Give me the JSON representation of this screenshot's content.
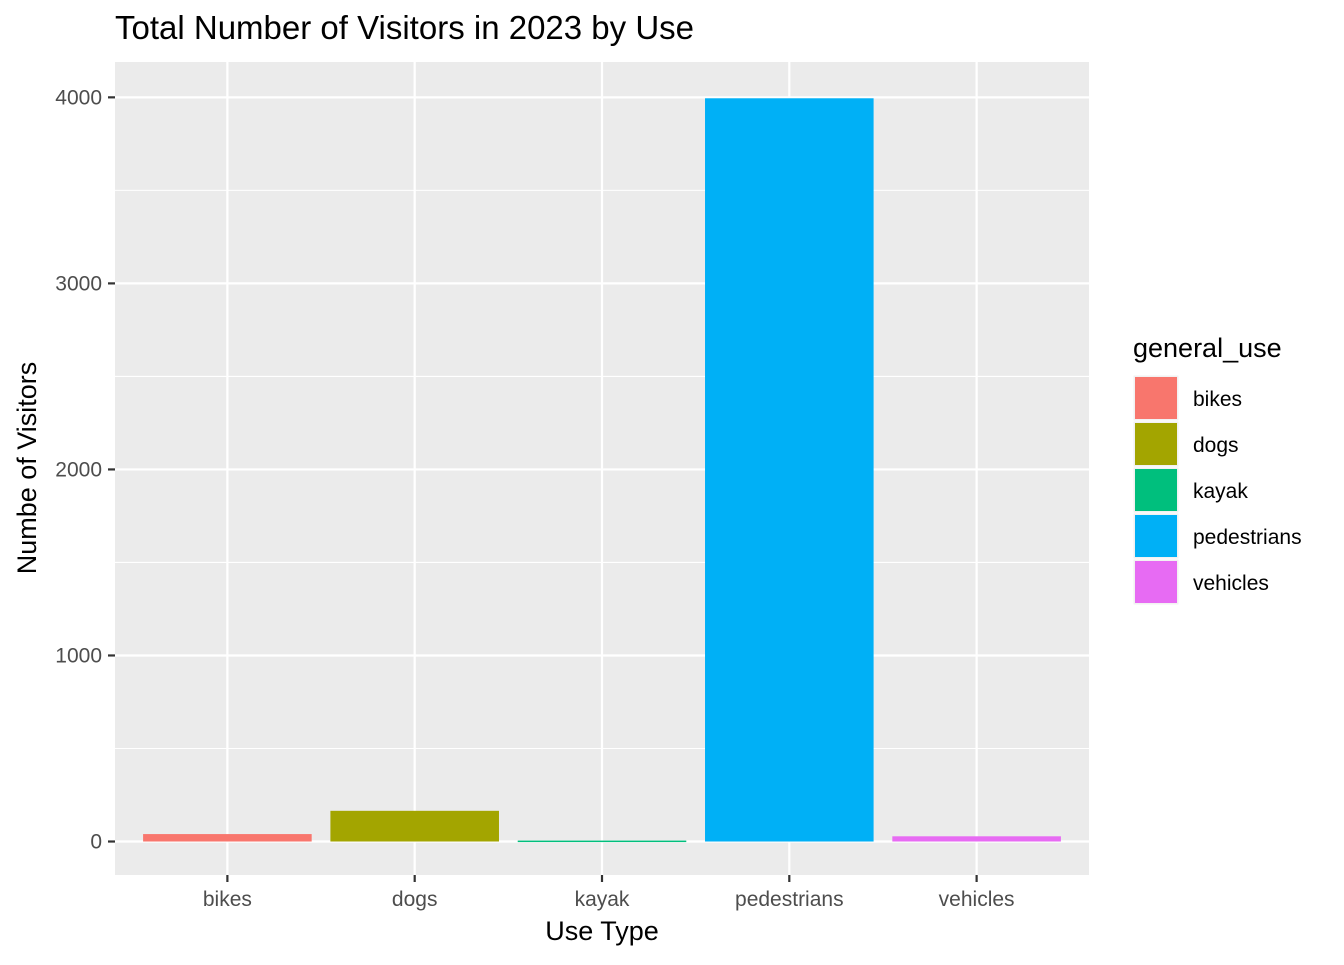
{
  "chart_data": {
    "type": "bar",
    "title": "Total Number of Visitors in 2023 by Use",
    "xlabel": "Use Type",
    "ylabel": "Numbe of Visitors",
    "categories": [
      "bikes",
      "dogs",
      "kayak",
      "pedestrians",
      "vehicles"
    ],
    "values": [
      40,
      165,
      5,
      3995,
      28
    ],
    "colors": [
      "#F8766D",
      "#A3A500",
      "#00BF7D",
      "#00B0F6",
      "#E76BF3"
    ],
    "ylim": [
      -180,
      4190
    ],
    "yticks": [
      0,
      1000,
      2000,
      3000,
      4000
    ],
    "grid": true,
    "legend": {
      "title": "general_use",
      "position": "right",
      "entries": [
        "bikes",
        "dogs",
        "kayak",
        "pedestrians",
        "vehicles"
      ]
    }
  }
}
